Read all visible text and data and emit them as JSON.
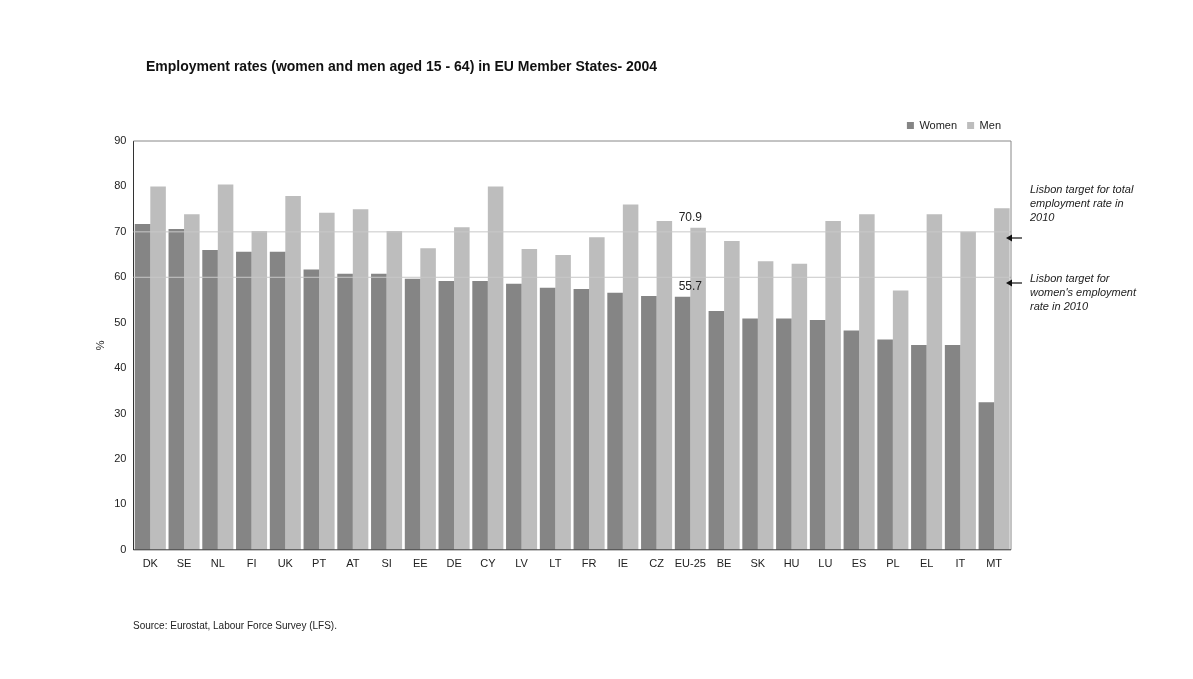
{
  "chart_data": {
    "type": "bar",
    "title": "Employment rates (women and men aged 15 - 64) in EU Member States- 2004",
    "ylabel": "%",
    "categories": [
      "DK",
      "SE",
      "NL",
      "FI",
      "UK",
      "PT",
      "AT",
      "SI",
      "EE",
      "DE",
      "CY",
      "LV",
      "LT",
      "FR",
      "IE",
      "CZ",
      "EU-25",
      "BE",
      "SK",
      "HU",
      "LU",
      "ES",
      "PL",
      "EL",
      "IT",
      "MT"
    ],
    "series": [
      {
        "name": "Women",
        "color": "#858585",
        "values": [
          71.7,
          70.6,
          66.0,
          65.6,
          65.6,
          61.7,
          60.8,
          60.8,
          59.7,
          59.2,
          59.2,
          58.6,
          57.7,
          57.4,
          56.6,
          55.9,
          55.7,
          52.6,
          50.9,
          50.9,
          50.6,
          48.3,
          46.3,
          45.1,
          45.1,
          32.5
        ]
      },
      {
        "name": "Men",
        "color": "#bdbdbd",
        "values": [
          80.0,
          73.9,
          80.4,
          70.2,
          77.9,
          74.2,
          75.0,
          70.2,
          66.4,
          71.0,
          80.0,
          66.2,
          64.9,
          68.8,
          76.0,
          72.4,
          70.9,
          68.0,
          63.5,
          63.0,
          72.4,
          73.9,
          57.1,
          73.9,
          70.0,
          75.2
        ]
      }
    ],
    "ylim": [
      0,
      90
    ],
    "yticks": [
      0,
      10,
      20,
      30,
      40,
      50,
      60,
      70,
      80,
      90
    ],
    "grid": false,
    "legend": "top right",
    "ref_lines": [
      {
        "axis": "y",
        "value": 70,
        "label": "Lisbon target for  total employment rate in 2010",
        "color": "#c8c8c8"
      },
      {
        "axis": "y",
        "value": 60,
        "label": "Lisbon target for women's employment rate in 2010",
        "color": "#c8c8c8"
      }
    ],
    "annotations": [
      {
        "text": "70.9",
        "x": "EU-25",
        "y": 70.9
      },
      {
        "text": "55.7",
        "x": "EU-25",
        "y": 55.7
      },
      "Source:  Eurostat, Labour Force Survey (LFS)."
    ]
  }
}
